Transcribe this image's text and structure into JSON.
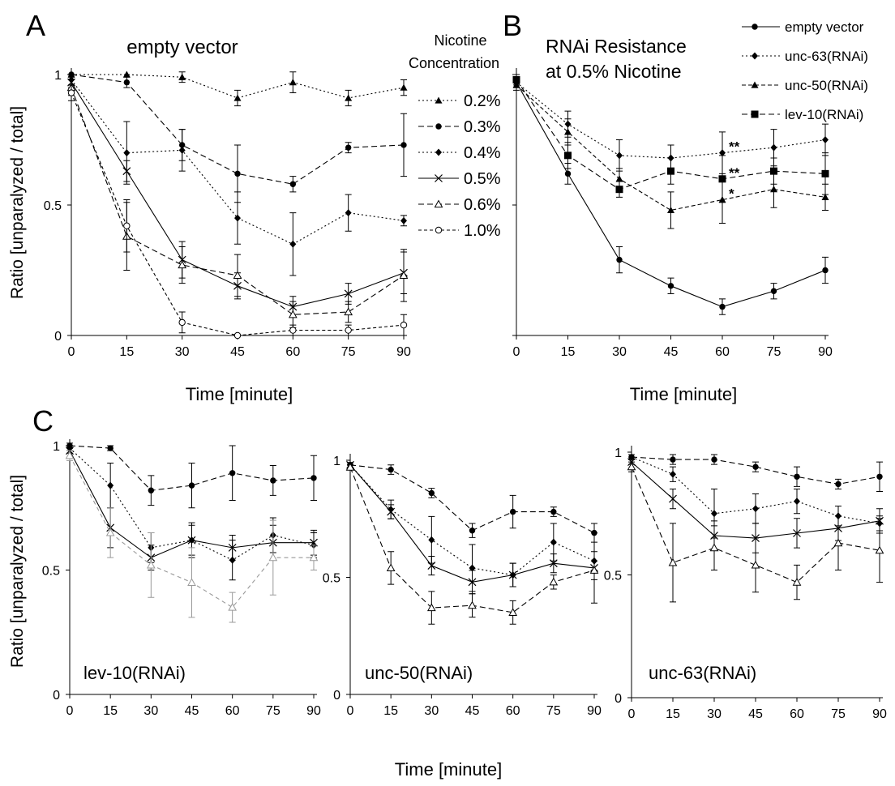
{
  "panel_labels": {
    "A": "A",
    "B": "B",
    "C": "C"
  },
  "shared": {
    "xlabel": "Time [minute]",
    "ylabel": "Ratio [unparalyzed / total]"
  },
  "legend_A": {
    "title_line1": "Nicotine",
    "title_line2": "Concentration",
    "entries": [
      "0.2%",
      "0.3%",
      "0.4%",
      "0.5%",
      "0.6%",
      "1.0%"
    ]
  },
  "legend_B": {
    "entries": [
      "empty vector",
      "unc-63(RNAi)",
      "unc-50(RNAi)",
      "lev-10(RNAi)"
    ]
  },
  "chart_data": [
    {
      "id": "A",
      "type": "line",
      "title": "empty vector",
      "xlabel": "Time [minute]",
      "ylabel": "Ratio [unparalyzed / total]",
      "x": [
        0,
        15,
        30,
        45,
        60,
        75,
        90
      ],
      "xlim": [
        0,
        90
      ],
      "ylim": [
        0,
        1
      ],
      "yticks": [
        0,
        0.5,
        1
      ],
      "ytick_labels": [
        "0",
        "0.5",
        "1"
      ],
      "legend": "right",
      "series": [
        {
          "name": "0.2%",
          "marker": "triangle",
          "dash": "2,3",
          "values": [
            1.0,
            1.0,
            0.99,
            0.91,
            0.97,
            0.91,
            0.95
          ],
          "errors": [
            0,
            0,
            0.02,
            0.03,
            0.04,
            0.03,
            0.03
          ]
        },
        {
          "name": "0.3%",
          "marker": "circle",
          "dash": "7,4",
          "values": [
            1.0,
            0.97,
            0.73,
            0.62,
            0.58,
            0.72,
            0.73
          ],
          "errors": [
            0,
            0.02,
            0.06,
            0.11,
            0.03,
            0.02,
            0.12
          ]
        },
        {
          "name": "0.4%",
          "marker": "diamond",
          "dash": "2,3",
          "values": [
            0.98,
            0.7,
            0.71,
            0.45,
            0.35,
            0.47,
            0.44
          ],
          "errors": [
            0.02,
            0.12,
            0.08,
            0.1,
            0.12,
            0.07,
            0.02
          ]
        },
        {
          "name": "0.5%",
          "marker": "cross",
          "dash": "",
          "values": [
            0.97,
            0.63,
            0.29,
            0.19,
            0.11,
            0.16,
            0.24
          ],
          "errors": [
            0.02,
            0.04,
            0.07,
            0.05,
            0.04,
            0.04,
            0.08
          ]
        },
        {
          "name": "0.6%",
          "marker": "open-triangle",
          "dash": "7,4",
          "values": [
            0.95,
            0.38,
            0.27,
            0.23,
            0.08,
            0.09,
            0.23
          ],
          "errors": [
            0.03,
            0.13,
            0.07,
            0.08,
            0.05,
            0.04,
            0.1
          ]
        },
        {
          "name": "1.0%",
          "marker": "open-circle",
          "dash": "4,3",
          "values": [
            0.93,
            0.42,
            0.05,
            0.0,
            0.02,
            0.02,
            0.04
          ],
          "errors": [
            0.03,
            0.1,
            0.04,
            0.0,
            0.02,
            0.02,
            0.04
          ]
        }
      ]
    },
    {
      "id": "B",
      "type": "line",
      "title": "RNAi Resistance at 0.5% Nicotine",
      "title_lines": [
        "RNAi Resistance",
        "at 0.5% Nicotine"
      ],
      "xlabel": "Time [minute]",
      "x": [
        0,
        15,
        30,
        45,
        60,
        75,
        90
      ],
      "xlim": [
        0,
        90
      ],
      "ylim": [
        0,
        1
      ],
      "legend": "top-right",
      "annotations": [
        {
          "x": 60,
          "series": "unc-63(RNAi)",
          "text": "**"
        },
        {
          "x": 60,
          "series": "lev-10(RNAi)",
          "text": "**"
        },
        {
          "x": 60,
          "series": "unc-50(RNAi)",
          "text": "*"
        }
      ],
      "series": [
        {
          "name": "empty vector",
          "marker": "circle",
          "dash": "",
          "values": [
            0.97,
            0.62,
            0.29,
            0.19,
            0.11,
            0.17,
            0.25
          ],
          "errors": [
            0.02,
            0.04,
            0.05,
            0.03,
            0.03,
            0.03,
            0.05
          ]
        },
        {
          "name": "unc-63(RNAi)",
          "marker": "diamond",
          "dash": "2,3",
          "values": [
            0.97,
            0.81,
            0.69,
            0.68,
            0.7,
            0.72,
            0.75
          ],
          "errors": [
            0.02,
            0.05,
            0.06,
            0.05,
            0.08,
            0.07,
            0.06
          ]
        },
        {
          "name": "unc-50(RNAi)",
          "marker": "triangle",
          "dash": "5,3",
          "values": [
            0.96,
            0.78,
            0.6,
            0.48,
            0.52,
            0.56,
            0.53
          ],
          "errors": [
            0.02,
            0.05,
            0.04,
            0.07,
            0.09,
            0.07,
            0.05
          ]
        },
        {
          "name": "lev-10(RNAi)",
          "marker": "square",
          "dash": "7,4",
          "values": [
            0.98,
            0.69,
            0.56,
            0.63,
            0.6,
            0.63,
            0.62
          ],
          "errors": [
            0.02,
            0.05,
            0.03,
            0.05,
            0.09,
            0.05,
            0.08
          ]
        }
      ]
    },
    {
      "id": "C1",
      "type": "line",
      "title": "lev-10(RNAi)",
      "xlabel": "Time [minute]",
      "ylabel": "Ratio [unparalyzed / total]",
      "x": [
        0,
        15,
        30,
        45,
        60,
        75,
        90
      ],
      "xlim": [
        0,
        90
      ],
      "ylim": [
        0,
        1
      ],
      "yticks": [
        0,
        0.5,
        1
      ],
      "ytick_labels": [
        "0",
        "0.5",
        "1"
      ],
      "series": [
        {
          "name": "0.3%",
          "marker": "circle",
          "dash": "7,4",
          "values": [
            1.0,
            0.99,
            0.82,
            0.84,
            0.89,
            0.86,
            0.87
          ],
          "errors": [
            0.01,
            0.01,
            0.06,
            0.09,
            0.11,
            0.06,
            0.09
          ]
        },
        {
          "name": "0.4%",
          "marker": "diamond",
          "dash": "2,3",
          "values": [
            0.99,
            0.84,
            0.59,
            0.62,
            0.54,
            0.64,
            0.6
          ],
          "errors": [
            0.01,
            0.09,
            0.06,
            0.07,
            0.08,
            0.07,
            0.05
          ]
        },
        {
          "name": "0.5%",
          "marker": "cross",
          "dash": "",
          "values": [
            0.98,
            0.67,
            0.55,
            0.62,
            0.59,
            0.61,
            0.61
          ],
          "errors": [
            0.01,
            0.08,
            0.05,
            0.06,
            0.05,
            0.07,
            0.05
          ]
        },
        {
          "name": "0.6%",
          "marker": "open-triangle",
          "dash": "5,4",
          "color": "#999999",
          "values": [
            0.96,
            0.65,
            0.52,
            0.45,
            0.35,
            0.55,
            0.55
          ],
          "errors": [
            0.02,
            0.1,
            0.13,
            0.14,
            0.06,
            0.15,
            0.05
          ]
        }
      ]
    },
    {
      "id": "C2",
      "type": "line",
      "title": "unc-50(RNAi)",
      "xlabel": "Time [minute]",
      "x": [
        0,
        15,
        30,
        45,
        60,
        75,
        90
      ],
      "xlim": [
        0,
        90
      ],
      "ylim": [
        0,
        1
      ],
      "yticks": [
        0,
        0.5,
        1
      ],
      "ytick_labels": [
        "0",
        "0.5",
        "1"
      ],
      "series": [
        {
          "name": "0.3%",
          "marker": "circle",
          "dash": "7,4",
          "values": [
            0.98,
            0.96,
            0.86,
            0.7,
            0.78,
            0.78,
            0.69
          ],
          "errors": [
            0.01,
            0.02,
            0.02,
            0.03,
            0.07,
            0.02,
            0.04
          ]
        },
        {
          "name": "0.4%",
          "marker": "diamond",
          "dash": "2,3",
          "values": [
            0.98,
            0.79,
            0.66,
            0.54,
            0.51,
            0.65,
            0.57
          ],
          "errors": [
            0.01,
            0.04,
            0.1,
            0.1,
            0.05,
            0.08,
            0.04
          ]
        },
        {
          "name": "0.5%",
          "marker": "cross",
          "dash": "",
          "values": [
            0.98,
            0.78,
            0.55,
            0.48,
            0.51,
            0.56,
            0.54
          ],
          "errors": [
            0.01,
            0.03,
            0.04,
            0.05,
            0.05,
            0.04,
            0.15
          ]
        },
        {
          "name": "0.6%",
          "marker": "open-triangle",
          "dash": "7,4",
          "values": [
            0.97,
            0.54,
            0.37,
            0.38,
            0.35,
            0.48,
            0.53
          ],
          "errors": [
            0.01,
            0.07,
            0.07,
            0.05,
            0.05,
            0.03,
            0.04
          ]
        }
      ]
    },
    {
      "id": "C3",
      "type": "line",
      "title": "unc-63(RNAi)",
      "xlabel": "Time [minute]",
      "x": [
        0,
        15,
        30,
        45,
        60,
        75,
        90
      ],
      "xlim": [
        0,
        90
      ],
      "ylim": [
        0,
        1
      ],
      "yticks": [
        0,
        0.5,
        1
      ],
      "ytick_labels": [
        "0",
        "0.5",
        "1"
      ],
      "series": [
        {
          "name": "0.3%",
          "marker": "circle",
          "dash": "7,4",
          "values": [
            0.98,
            0.97,
            0.97,
            0.94,
            0.9,
            0.87,
            0.9
          ],
          "errors": [
            0.01,
            0.02,
            0.02,
            0.02,
            0.04,
            0.02,
            0.06
          ]
        },
        {
          "name": "0.4%",
          "marker": "diamond",
          "dash": "2,3",
          "values": [
            0.98,
            0.91,
            0.75,
            0.77,
            0.8,
            0.74,
            0.71
          ],
          "errors": [
            0.01,
            0.03,
            0.1,
            0.06,
            0.05,
            0.04,
            0.03
          ]
        },
        {
          "name": "0.5%",
          "marker": "cross",
          "dash": "",
          "values": [
            0.96,
            0.81,
            0.66,
            0.65,
            0.67,
            0.69,
            0.72
          ],
          "errors": [
            0.01,
            0.04,
            0.06,
            0.06,
            0.06,
            0.05,
            0.05
          ]
        },
        {
          "name": "0.6%",
          "marker": "open-triangle",
          "dash": "7,4",
          "values": [
            0.94,
            0.55,
            0.61,
            0.54,
            0.47,
            0.63,
            0.6
          ],
          "errors": [
            0.02,
            0.16,
            0.09,
            0.11,
            0.07,
            0.11,
            0.13
          ]
        }
      ]
    }
  ]
}
